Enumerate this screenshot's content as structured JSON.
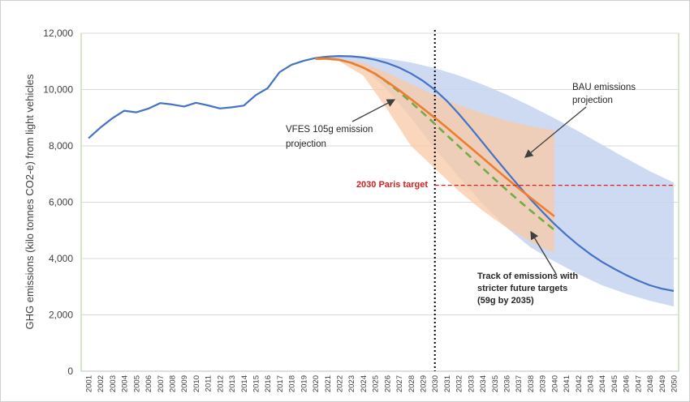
{
  "chart_data": {
    "type": "line",
    "xlabel": "",
    "ylabel": "GHG emissions (kilo tonnes CO2-e) from light vehicles",
    "ylim": [
      0,
      12000
    ],
    "xlim": [
      2001,
      2050
    ],
    "grid": "horizontal",
    "y_ticks": [
      0,
      2000,
      4000,
      6000,
      8000,
      10000,
      12000
    ],
    "y_tick_labels": [
      "0",
      "2,000",
      "4,000",
      "6,000",
      "8,000",
      "10,000",
      "12,000"
    ],
    "x_tick_labels": [
      "2001",
      "2002",
      "2003",
      "2004",
      "2005",
      "2006",
      "2007",
      "2008",
      "2009",
      "2010",
      "2011",
      "2012",
      "2013",
      "2014",
      "2015",
      "2016",
      "2017",
      "2018",
      "2019",
      "2020",
      "2021",
      "2022",
      "2023",
      "2024",
      "2025",
      "2026",
      "2027",
      "2028",
      "2029",
      "2030",
      "2031",
      "2032",
      "2033",
      "2034",
      "2035",
      "2036",
      "2037",
      "2038",
      "2039",
      "2040",
      "2041",
      "2042",
      "2043",
      "2044",
      "2045",
      "2046",
      "2047",
      "2048",
      "2049",
      "2050"
    ],
    "colors": {
      "bau": "#4472c4",
      "bau_band": "#c5d3ef",
      "vfes": "#ed7d31",
      "vfes_band": "#f8c9a6",
      "vfes_band_overlap": "#dfb3a9",
      "strict": "#70ad47",
      "vertical_line": "#000000",
      "paris": "#d42020",
      "plot_border": "#a9d08e",
      "grid": "#d9d9d9"
    },
    "series": [
      {
        "key": "bau",
        "x": [
          2001,
          2002,
          2003,
          2004,
          2005,
          2006,
          2007,
          2008,
          2009,
          2010,
          2011,
          2012,
          2013,
          2014,
          2015,
          2016,
          2017,
          2018,
          2019,
          2020,
          2021,
          2022,
          2023,
          2024,
          2025,
          2026,
          2027,
          2028,
          2029,
          2030,
          2031,
          2032,
          2033,
          2034,
          2035,
          2036,
          2037,
          2038,
          2039,
          2040,
          2041,
          2042,
          2043,
          2044,
          2045,
          2046,
          2047,
          2048,
          2049,
          2050
        ],
        "values": [
          8270,
          8650,
          8980,
          9250,
          9190,
          9320,
          9520,
          9470,
          9400,
          9530,
          9440,
          9330,
          9370,
          9430,
          9800,
          10050,
          10620,
          10880,
          11020,
          11120,
          11170,
          11190,
          11180,
          11140,
          11060,
          10940,
          10780,
          10570,
          10310,
          9990,
          9600,
          9140,
          8640,
          8120,
          7600,
          7090,
          6590,
          6110,
          5660,
          5230,
          4840,
          4480,
          4160,
          3880,
          3640,
          3420,
          3220,
          3050,
          2930,
          2850
        ]
      },
      {
        "key": "vfes",
        "x": [
          2020,
          2021,
          2022,
          2023,
          2024,
          2025,
          2026,
          2027,
          2028,
          2029,
          2030,
          2031,
          2032,
          2033,
          2034,
          2035,
          2036,
          2037,
          2038,
          2039,
          2040
        ],
        "values": [
          11090,
          11100,
          11060,
          10950,
          10780,
          10560,
          10280,
          9980,
          9660,
          9330,
          9000,
          8650,
          8290,
          7930,
          7570,
          7210,
          6850,
          6500,
          6160,
          5830,
          5500
        ]
      },
      {
        "key": "strict",
        "x": [
          2020,
          2021,
          2022,
          2023,
          2024,
          2025,
          2026,
          2027,
          2028,
          2029,
          2030,
          2031,
          2032,
          2033,
          2034,
          2035,
          2036,
          2037,
          2038,
          2039,
          2040
        ],
        "values": [
          11090,
          11100,
          11060,
          10950,
          10780,
          10560,
          10260,
          9920,
          9550,
          9170,
          8780,
          8380,
          7990,
          7600,
          7210,
          6820,
          6440,
          6070,
          5710,
          5360,
          5020
        ]
      }
    ],
    "bands": [
      {
        "key": "bau_band",
        "x": [
          2020,
          2022,
          2024,
          2026,
          2028,
          2030,
          2032,
          2034,
          2036,
          2038,
          2040,
          2042,
          2044,
          2046,
          2048,
          2050
        ],
        "upper": [
          11100,
          11180,
          11180,
          11100,
          10960,
          10760,
          10500,
          10180,
          9820,
          9420,
          8980,
          8520,
          8040,
          7560,
          7100,
          6700
        ],
        "lower": [
          11100,
          11100,
          10800,
          10000,
          9000,
          7900,
          6900,
          5950,
          5100,
          4400,
          3900,
          3450,
          3050,
          2750,
          2500,
          2300
        ]
      },
      {
        "key": "vfes_band",
        "x": [
          2020,
          2022,
          2024,
          2026,
          2028,
          2030,
          2032,
          2034,
          2036,
          2038,
          2040
        ],
        "upper": [
          11090,
          11080,
          10950,
          10600,
          10200,
          9800,
          9450,
          9150,
          8900,
          8700,
          8550
        ],
        "lower": [
          11090,
          11000,
          10500,
          9300,
          8000,
          7200,
          6400,
          5700,
          5100,
          4600,
          4200
        ]
      }
    ],
    "vertical_marker_year": 2030,
    "paris_target": {
      "value": 6600,
      "from_year": 2030,
      "label": "2030 Paris target"
    },
    "annotations": {
      "vfes_line1": "VFES 105g emission",
      "vfes_line2": "projection",
      "bau_line1": "BAU emissions",
      "bau_line2": "projection",
      "strict_line1": "Track of emissions with",
      "strict_line2": "stricter future targets",
      "strict_line3": "(59g by 2035)"
    }
  }
}
